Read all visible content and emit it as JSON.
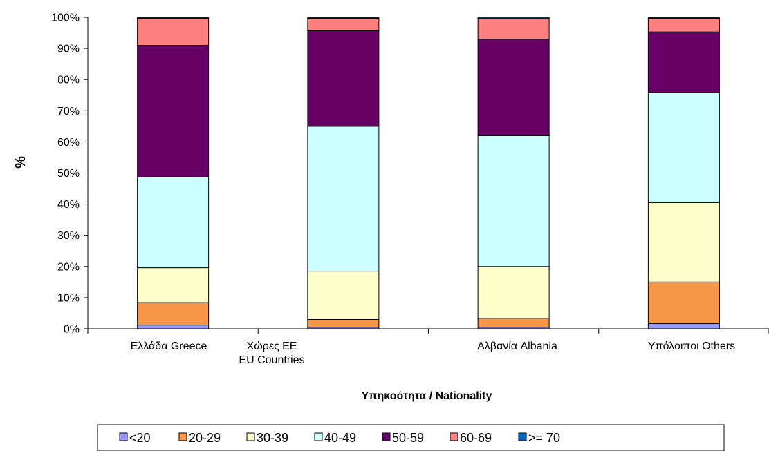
{
  "chart_data": {
    "type": "bar",
    "stacked": true,
    "percent": true,
    "categories": [
      [
        "Ελλάδα Greece"
      ],
      [
        "Χώρες ΕΕ",
        "EU Countries"
      ],
      [
        "Αλβανία Albania"
      ],
      [
        "Υπόλοιποι Others"
      ]
    ],
    "xlabel": "Υπηκοότητα / Nationality",
    "ylabel": "%",
    "ylim": [
      0,
      100
    ],
    "yticks": [
      "0%",
      "10%",
      "20%",
      "30%",
      "40%",
      "50%",
      "60%",
      "70%",
      "80%",
      "90%",
      "100%"
    ],
    "grid": false,
    "legend_position": "bottom",
    "series": [
      {
        "name": "<20",
        "color": "#9999ff",
        "values": [
          1.2,
          0.5,
          0.5,
          1.7
        ]
      },
      {
        "name": "20-29",
        "color": "#f79646",
        "values": [
          7.2,
          2.5,
          2.9,
          13.3
        ]
      },
      {
        "name": "30-39",
        "color": "#ffffcc",
        "values": [
          11.2,
          15.5,
          16.6,
          25.5
        ]
      },
      {
        "name": "40-49",
        "color": "#ccffff",
        "values": [
          29.1,
          46.5,
          42.0,
          35.3
        ]
      },
      {
        "name": "50-59",
        "color": "#660066",
        "values": [
          42.3,
          30.7,
          31.0,
          19.5
        ]
      },
      {
        "name": "60-69",
        "color": "#ff8080",
        "values": [
          8.7,
          4.0,
          6.6,
          4.4
        ]
      },
      {
        "name": ">= 70",
        "color": "#0066cc",
        "values": [
          0.3,
          0.3,
          0.4,
          0.3
        ]
      }
    ]
  }
}
